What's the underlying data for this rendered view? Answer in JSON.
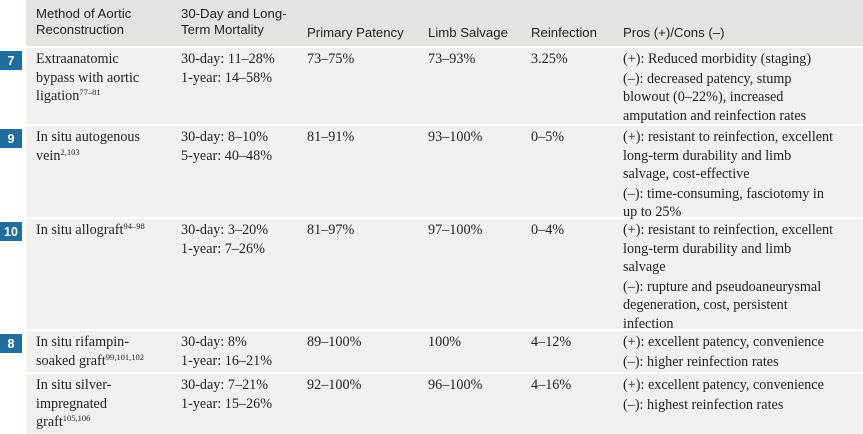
{
  "headers": {
    "method": [
      "Method of Aortic",
      "Reconstruction"
    ],
    "mortality": [
      "30-Day and Long-",
      "Term Mortality"
    ],
    "patency": "Primary Patency",
    "limb": "Limb Salvage",
    "reinfection": "Reinfection",
    "pros_cons": "Pros (+)/Cons (–)"
  },
  "rows": [
    {
      "badge": "7",
      "method": [
        "Extraanatomic",
        "bypass with aortic",
        "ligation"
      ],
      "ref": "77–81",
      "mortality": [
        "30-day: 11–28%",
        "1-year: 14–58%"
      ],
      "patency": "73–75%",
      "limb": "73–93%",
      "reinfection": "3.25%",
      "pros": [
        "(+): Reduced morbidity (staging)"
      ],
      "cons": [
        "(–): decreased patency, stump",
        "blowout (0–22%), increased",
        "amputation and reinfection rates"
      ]
    },
    {
      "badge": "9",
      "method": [
        "In situ autogenous",
        "vein"
      ],
      "ref": "2,103",
      "mortality": [
        "30-day: 8–10%",
        "5-year: 40–48%"
      ],
      "patency": "81–91%",
      "limb": "93–100%",
      "reinfection": "0–5%",
      "pros": [
        "(+): resistant to reinfection, excellent",
        "long-term durability and limb",
        "salvage, cost-effective"
      ],
      "cons": [
        "(–): time-consuming, fasciotomy in",
        "up to 25%"
      ]
    },
    {
      "badge": "10",
      "method": [
        "In situ allograft"
      ],
      "ref": "94–98",
      "mortality": [
        "30-day: 3–20%",
        "1-year: 7–26%"
      ],
      "patency": "81–97%",
      "limb": "97–100%",
      "reinfection": "0–4%",
      "pros": [
        "(+): resistant to reinfection, excellent",
        "long-term durability and limb",
        "salvage"
      ],
      "cons": [
        "(–): rupture and pseudoaneurysmal",
        "degeneration, cost, persistent",
        "infection"
      ]
    },
    {
      "badge": "8",
      "method": [
        "In situ rifampin-",
        "soaked graft"
      ],
      "ref": "99,101,102",
      "mortality": [
        "30-day: 8%",
        "1-year: 16–21%"
      ],
      "patency": "89–100%",
      "limb": "100%",
      "reinfection": "4–12%",
      "pros": [
        "(+): excellent patency, convenience"
      ],
      "cons": [
        "(–): higher reinfection rates"
      ]
    },
    {
      "badge": "",
      "method": [
        "In situ silver-",
        "impregnated",
        "graft"
      ],
      "ref": "105,106",
      "mortality": [
        "30-day: 7–21%",
        "1-year: 15–26%"
      ],
      "patency": "92–100%",
      "limb": "96–100%",
      "reinfection": "4–16%",
      "pros": [
        "(+): excellent patency, convenience"
      ],
      "cons": [
        "(–): highest reinfection rates"
      ]
    }
  ]
}
